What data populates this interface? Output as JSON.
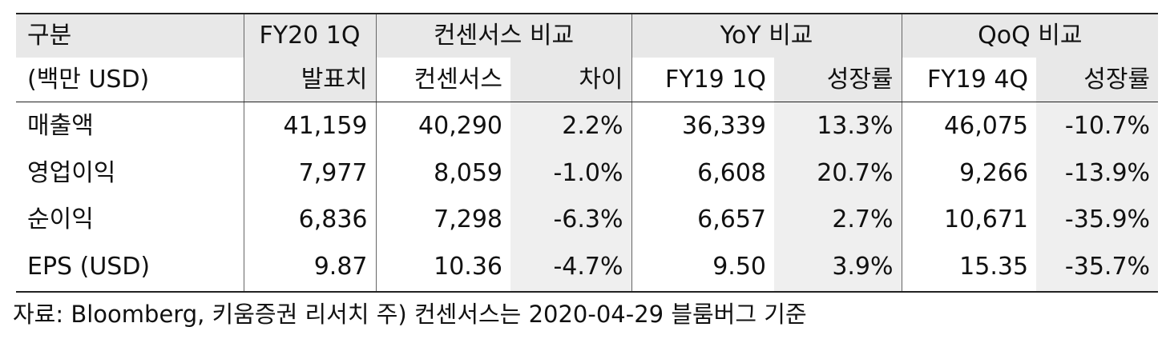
{
  "header_row1": {
    "category": "구분",
    "fy20_1q": "FY20 1Q",
    "consensus_compare": "컨센서스 비교",
    "yoy_compare": "YoY 비교",
    "qoq_compare": "QoQ 비교"
  },
  "header_row2": {
    "unit": "(백만 USD)",
    "actual": "발표치",
    "consensus": "컨센서스",
    "difference": "차이",
    "fy19_1q": "FY19 1Q",
    "yoy_growth": "성장률",
    "fy19_4q": "FY19 4Q",
    "qoq_growth": "성장률"
  },
  "rows": [
    {
      "label": "매출액",
      "actual": "41,159",
      "consensus": "40,290",
      "diff": "2.2%",
      "fy19_1q": "36,339",
      "yoy": "13.3%",
      "fy19_4q": "46,075",
      "qoq": "-10.7%"
    },
    {
      "label": "영업이익",
      "actual": "7,977",
      "consensus": "8,059",
      "diff": "-1.0%",
      "fy19_1q": "6,608",
      "yoy": "20.7%",
      "fy19_4q": "9,266",
      "qoq": "-13.9%"
    },
    {
      "label": "순이익",
      "actual": "6,836",
      "consensus": "7,298",
      "diff": "-6.3%",
      "fy19_1q": "6,657",
      "yoy": "2.7%",
      "fy19_4q": "10,671",
      "qoq": "-35.9%"
    },
    {
      "label": "EPS (USD)",
      "actual": "9.87",
      "consensus": "10.36",
      "diff": "-4.7%",
      "fy19_1q": "9.50",
      "yoy": "3.9%",
      "fy19_4q": "15.35",
      "qoq": "-35.7%"
    }
  ],
  "source_note": "자료: Bloomberg, 키움증권 리서치 주) 컨센서스는 2020-04-29 블룸버그 기준"
}
